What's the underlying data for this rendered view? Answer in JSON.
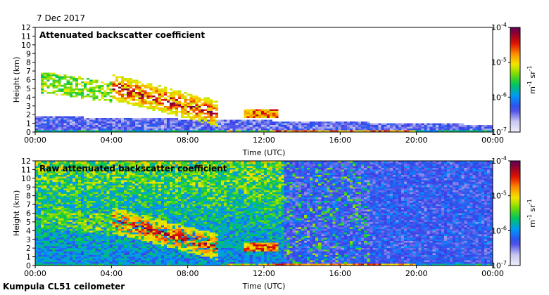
{
  "date": "7 Dec 2017",
  "footer": "Kumpula CL51 ceilometer",
  "chart_data": [
    {
      "type": "heatmap",
      "title": "Attenuated backscatter coefficient",
      "xlabel": "Time (UTC)",
      "ylabel": "Height (km)",
      "x_ticks": [
        "00:00",
        "04:00",
        "08:00",
        "12:00",
        "16:00",
        "20:00",
        "00:00"
      ],
      "xlim_hours": [
        0,
        24
      ],
      "y_ticks": [
        0,
        1,
        2,
        3,
        4,
        5,
        6,
        7,
        8,
        9,
        10,
        11,
        12
      ],
      "ylim": [
        0,
        12
      ],
      "colorbar": {
        "scale": "log",
        "range": [
          1e-07,
          0.0001
        ],
        "tick_labels": [
          "10-7",
          "10-6",
          "10-5",
          "10-4"
        ],
        "label": "m-1 sr-1"
      },
      "features": [
        {
          "desc": "elevated cloud layer",
          "t_start_h": 0.3,
          "t_end_h": 4.0,
          "height_km": [
            4.5,
            7.5
          ]
        },
        {
          "desc": "descending cloud layer",
          "t_start_h": 4.0,
          "t_end_h": 9.5,
          "height_km": [
            2.0,
            5.5
          ]
        },
        {
          "desc": "low cloud",
          "t_start_h": 11.0,
          "t_end_h": 12.8,
          "height_km": [
            1.5,
            2.5
          ]
        },
        {
          "desc": "boundary layer",
          "t_start_h": 0,
          "t_end_h": 24,
          "height_km": [
            0,
            1.8
          ]
        }
      ]
    },
    {
      "type": "heatmap",
      "title": "Raw attenuated backscatter coefficient",
      "xlabel": "Time (UTC)",
      "ylabel": "Height (km)",
      "x_ticks": [
        "00:00",
        "04:00",
        "08:00",
        "12:00",
        "16:00",
        "20:00",
        "00:00"
      ],
      "xlim_hours": [
        0,
        24
      ],
      "y_ticks": [
        0,
        1,
        2,
        3,
        4,
        5,
        6,
        7,
        8,
        9,
        10,
        11,
        12
      ],
      "ylim": [
        0,
        12
      ],
      "colorbar": {
        "scale": "log",
        "range": [
          1e-07,
          0.0001
        ],
        "tick_labels": [
          "10-7",
          "10-6",
          "10-5",
          "10-4"
        ],
        "label": "m-1 sr-1"
      }
    }
  ]
}
